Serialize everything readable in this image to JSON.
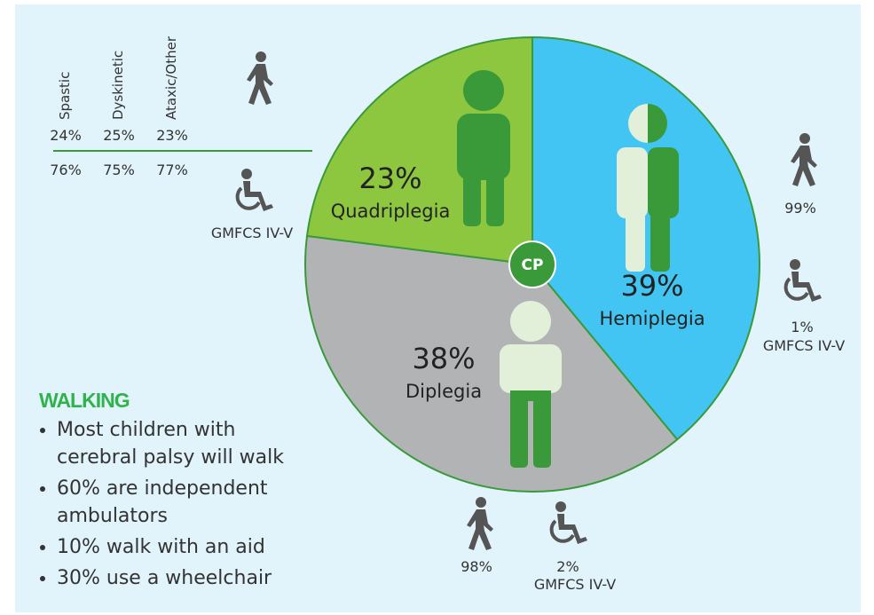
{
  "chart_data": {
    "type": "pie",
    "center_label": "CP",
    "categories": [
      "Hemiplegia",
      "Diplegia",
      "Quadriplegia"
    ],
    "values": [
      39,
      38,
      23
    ],
    "value_labels": [
      "39%",
      "38%",
      "23%"
    ],
    "colors": [
      "#42c5f2",
      "#b2b3b5",
      "#8dc63f"
    ]
  },
  "table": {
    "columns": [
      "Spastic",
      "Dyskinetic",
      "Ataxic/Other"
    ],
    "walk": [
      "24%",
      "25%",
      "23%"
    ],
    "wheelchair": [
      "76%",
      "75%",
      "77%"
    ],
    "wheelchair_label": "GMFCS IV-V"
  },
  "hemiplegia_stats": {
    "walk": "99%",
    "wheelchair": "1%",
    "wheelchair_label": "GMFCS IV-V"
  },
  "diplegia_stats": {
    "walk": "98%",
    "wheelchair": "2%",
    "wheelchair_label": "GMFCS IV-V"
  },
  "walking": {
    "title": "WALKING",
    "bullets": [
      "Most children with cerebral palsy will walk",
      "60% are independent ambulators",
      "10% walk with an aid",
      "30% use a wheelchair"
    ]
  }
}
